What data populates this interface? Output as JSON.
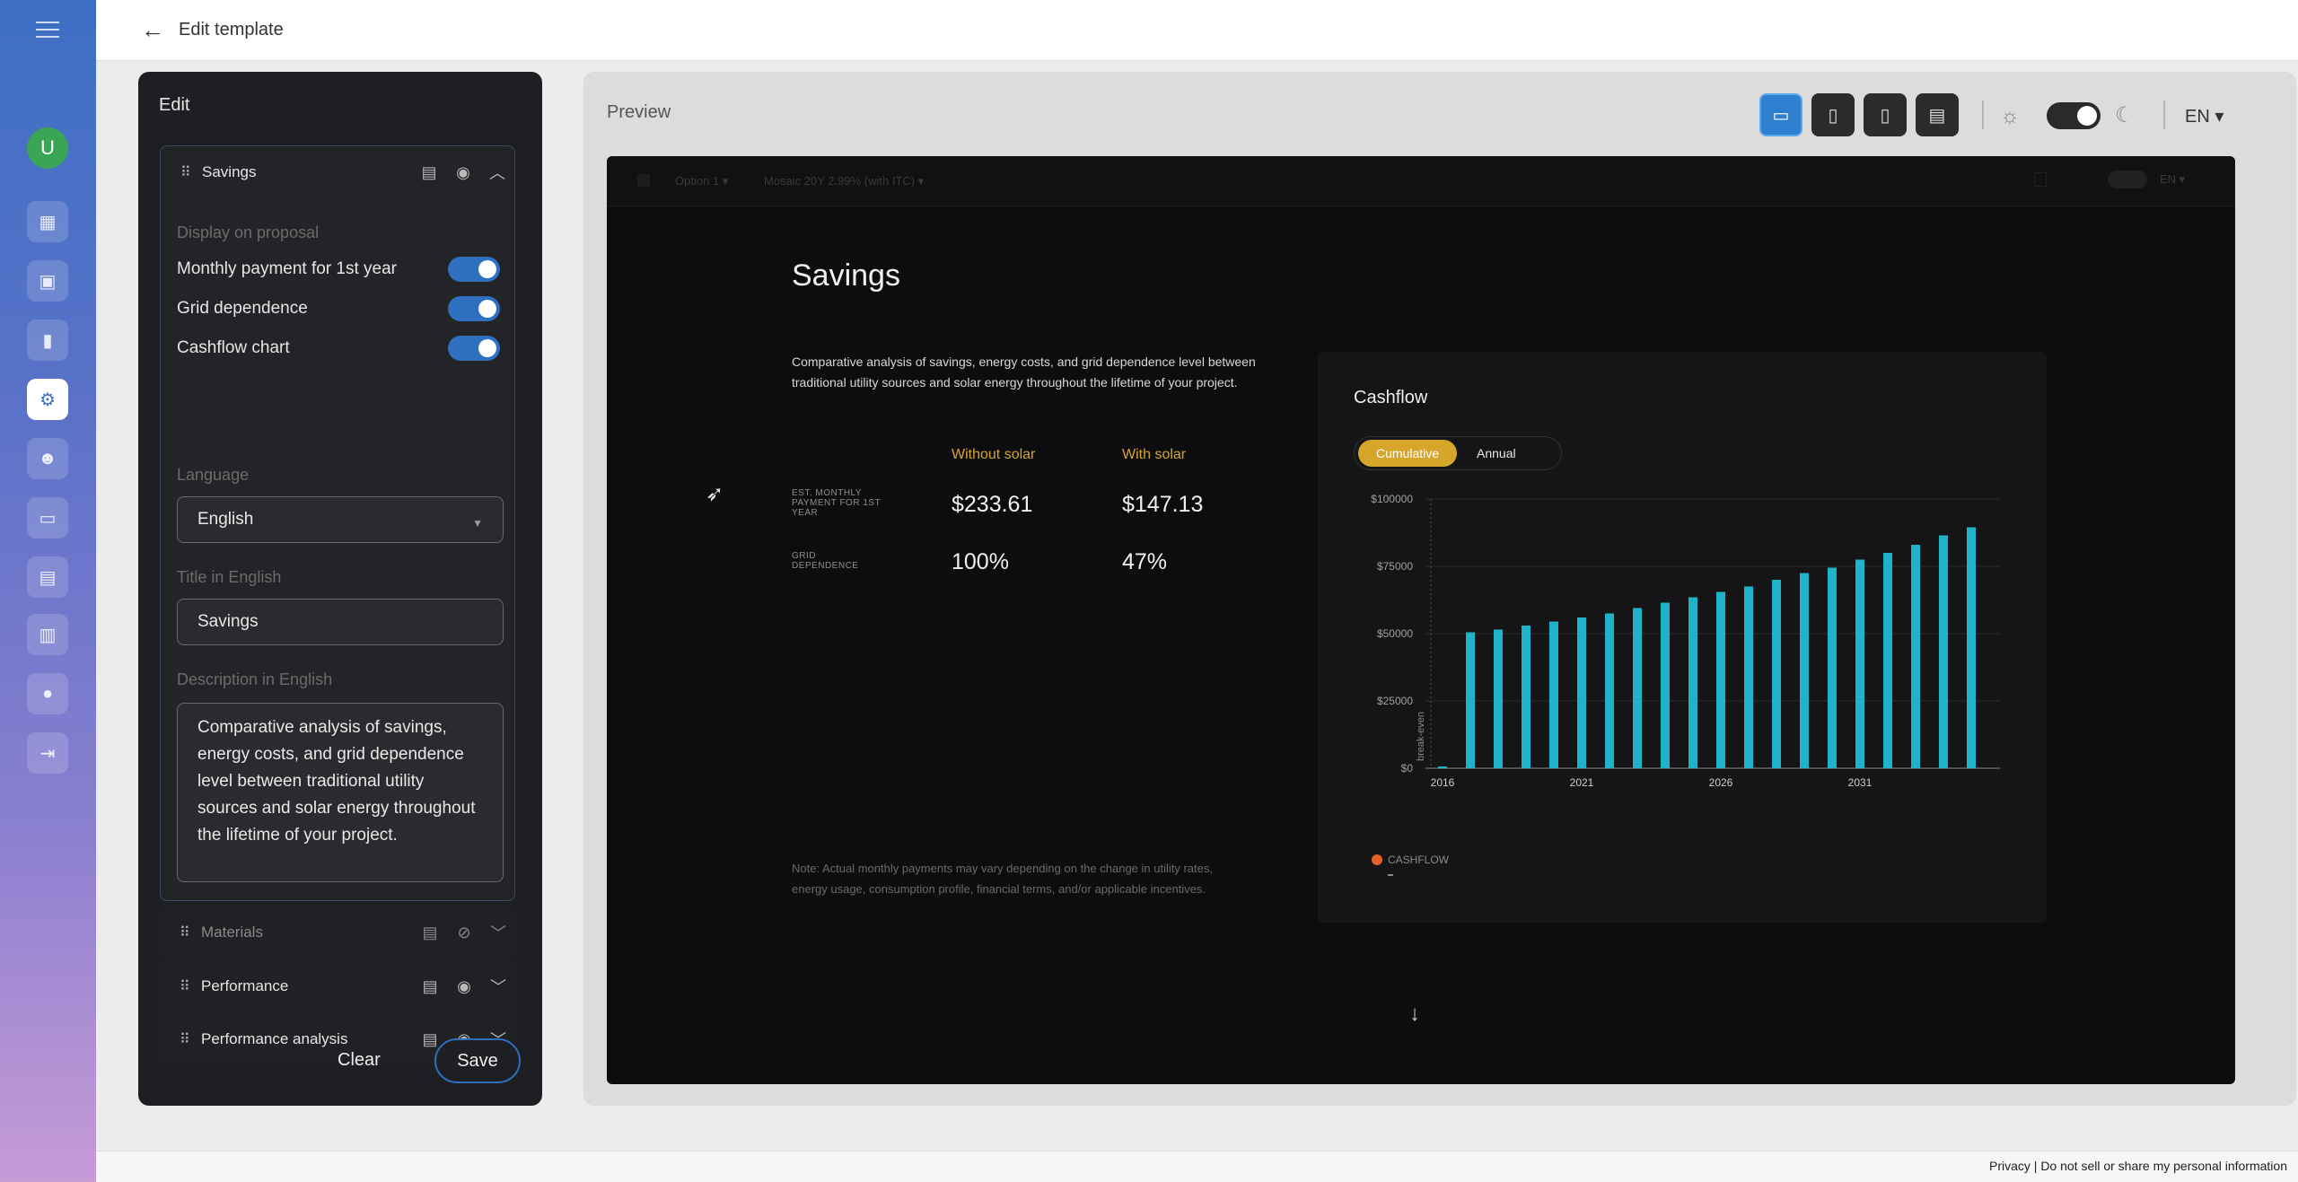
{
  "rail": {
    "avatar_letter": "U",
    "items": [
      {
        "icon": "dashboard-icon",
        "glyph": "▦"
      },
      {
        "icon": "briefcase-icon",
        "glyph": "▣"
      },
      {
        "icon": "bar-chart-icon",
        "glyph": "▮"
      },
      {
        "icon": "gear-icon",
        "glyph": "⚙"
      },
      {
        "icon": "users-icon",
        "glyph": "☻"
      },
      {
        "icon": "monitor-icon",
        "glyph": "▭"
      },
      {
        "icon": "document-icon",
        "glyph": "▤"
      },
      {
        "icon": "calendar-icon",
        "glyph": "▥"
      },
      {
        "icon": "chat-icon",
        "glyph": "●"
      },
      {
        "icon": "logout-icon",
        "glyph": "⇥"
      }
    ]
  },
  "topbar": {
    "title": "Edit template"
  },
  "edit": {
    "heading": "Edit",
    "section_title": "Savings",
    "display_label": "Display on proposal",
    "toggles": [
      {
        "label": "Monthly payment for 1st year",
        "on": true
      },
      {
        "label": "Grid dependence",
        "on": true
      },
      {
        "label": "Cashflow chart",
        "on": true
      }
    ],
    "language_label": "Language",
    "language_value": "English",
    "title_label": "Title in English",
    "title_value": "Savings",
    "desc_label": "Description in English",
    "desc_value": "Comparative analysis of savings, energy costs, and grid dependence level between traditional utility sources and solar energy throughout the lifetime of your project.",
    "other_sections": [
      "Materials",
      "Performance",
      "Performance analysis"
    ],
    "clear_label": "Clear",
    "save_label": "Save"
  },
  "preview": {
    "label": "Preview",
    "lang": "EN",
    "subbar": {
      "option": "Option 1",
      "financing": "Mosaic 20Y 2.99% (with ITC)",
      "lang": "EN"
    },
    "title": "Savings",
    "description": "Comparative analysis of savings, energy costs, and grid dependence level between traditional utility sources and solar energy throughout the lifetime of your project.",
    "col_without": "Without solar",
    "col_with": "With solar",
    "row1_label": "EST. MONTHLY PAYMENT FOR 1ST YEAR",
    "row1_without": "$233.61",
    "row1_with": "$147.13",
    "row2_label": "GRID DEPENDENCE",
    "row2_without": "100%",
    "row2_with": "47%",
    "note": "Note: Actual monthly payments may vary depending on the change in utility rates, energy usage, consumption profile, financial terms, and/or applicable incentives.",
    "cashflow_title": "Cashflow",
    "tab_cumulative": "Cumulative",
    "tab_annual": "Annual",
    "legend": "CASHFLOW",
    "break_even_label": "break-even"
  },
  "chart_data": {
    "type": "bar",
    "title": "Cashflow",
    "x": [
      2016,
      2017,
      2018,
      2019,
      2020,
      2021,
      2022,
      2023,
      2024,
      2025,
      2026,
      2027,
      2028,
      2029,
      2030,
      2031,
      2032,
      2033,
      2034,
      2035
    ],
    "series": [
      {
        "name": "CASHFLOW",
        "values": [
          0,
          50500,
          51500,
          53000,
          54500,
          56000,
          57500,
          59500,
          61500,
          63500,
          65500,
          67500,
          70000,
          72500,
          74500,
          77500,
          80000,
          83000,
          86500,
          89500
        ]
      }
    ],
    "ylim": [
      0,
      100000
    ],
    "yticks": [
      "$0",
      "$25000",
      "$50000",
      "$75000",
      "$100000"
    ],
    "ytick_values": [
      0,
      25000,
      50000,
      75000,
      100000
    ],
    "xtick_labels": [
      "2016",
      "2021",
      "2026",
      "2031"
    ],
    "bar_color": "#1fb3c9"
  },
  "footer": {
    "text": "Privacy  |  Do not sell or share my personal information"
  }
}
